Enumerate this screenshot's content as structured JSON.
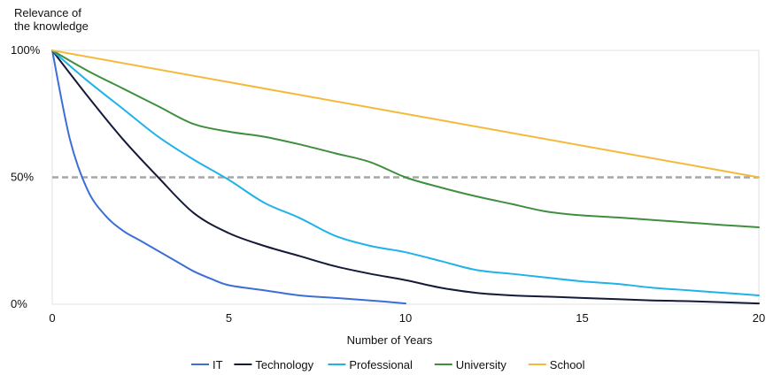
{
  "chart_data": {
    "type": "line",
    "title": "",
    "ylabel_lines": [
      "Relevance of",
      "the knowledge"
    ],
    "xlabel": "Number of Years",
    "xlim": [
      0,
      20
    ],
    "ylim": [
      0,
      100
    ],
    "x_ticks": [
      0,
      5,
      10,
      15,
      20
    ],
    "x_tick_labels": [
      "0",
      "5",
      "10",
      "15",
      "20"
    ],
    "y_ticks": [
      0,
      50,
      100
    ],
    "y_tick_labels": [
      "0%",
      "50%",
      "100%"
    ],
    "grid": false,
    "reference_line": {
      "y": 50,
      "style": "dashed",
      "color": "#a6a6a6"
    },
    "legend_position": "bottom-center",
    "series": [
      {
        "name": "IT",
        "color": "#3b6fd6",
        "points": [
          [
            0,
            100
          ],
          [
            0.5,
            65
          ],
          [
            1,
            45
          ],
          [
            1.5,
            35
          ],
          [
            2,
            29
          ],
          [
            2.5,
            25
          ],
          [
            3,
            21
          ],
          [
            3.5,
            17
          ],
          [
            4,
            13
          ],
          [
            4.5,
            10
          ],
          [
            5,
            7.5
          ],
          [
            6,
            5.5
          ],
          [
            7,
            3.5
          ],
          [
            8,
            2.5
          ],
          [
            9,
            1.5
          ],
          [
            10,
            0.3
          ]
        ]
      },
      {
        "name": "Technology",
        "color": "#141a38",
        "points": [
          [
            0,
            100
          ],
          [
            1,
            82
          ],
          [
            2,
            65
          ],
          [
            3,
            50
          ],
          [
            4,
            36
          ],
          [
            5,
            28
          ],
          [
            6,
            23
          ],
          [
            7,
            19
          ],
          [
            8,
            15
          ],
          [
            9,
            12
          ],
          [
            10,
            9.5
          ],
          [
            11,
            6.5
          ],
          [
            12,
            4.5
          ],
          [
            13,
            3.5
          ],
          [
            14,
            3
          ],
          [
            15,
            2.5
          ],
          [
            16,
            2
          ],
          [
            17,
            1.5
          ],
          [
            18,
            1.2
          ],
          [
            19,
            0.8
          ],
          [
            20,
            0.3
          ]
        ]
      },
      {
        "name": "Professional",
        "color": "#20b2e8",
        "points": [
          [
            0,
            100
          ],
          [
            1,
            88
          ],
          [
            2,
            77
          ],
          [
            3,
            66
          ],
          [
            4,
            57
          ],
          [
            5,
            49
          ],
          [
            6,
            40
          ],
          [
            7,
            34
          ],
          [
            8,
            27
          ],
          [
            9,
            23
          ],
          [
            10,
            20.5
          ],
          [
            11,
            17
          ],
          [
            12,
            13.5
          ],
          [
            13,
            12
          ],
          [
            14,
            10.5
          ],
          [
            15,
            9
          ],
          [
            16,
            8
          ],
          [
            17,
            6.5
          ],
          [
            18,
            5.5
          ],
          [
            19,
            4.5
          ],
          [
            20,
            3.5
          ]
        ]
      },
      {
        "name": "University",
        "color": "#3f8f3f",
        "points": [
          [
            0,
            100
          ],
          [
            1,
            92
          ],
          [
            2,
            85
          ],
          [
            3,
            78
          ],
          [
            4,
            71
          ],
          [
            5,
            68
          ],
          [
            6,
            66
          ],
          [
            7,
            63
          ],
          [
            8,
            59.5
          ],
          [
            9,
            56
          ],
          [
            10,
            50
          ],
          [
            11,
            46
          ],
          [
            12,
            42.5
          ],
          [
            13,
            39.5
          ],
          [
            14,
            36.5
          ],
          [
            15,
            35
          ],
          [
            16,
            34.2
          ],
          [
            17,
            33.2
          ],
          [
            18,
            32.2
          ],
          [
            19,
            31.2
          ],
          [
            20,
            30.3
          ]
        ]
      },
      {
        "name": "School",
        "color": "#f5b93a",
        "points": [
          [
            0,
            100
          ],
          [
            20,
            50
          ]
        ]
      }
    ]
  }
}
